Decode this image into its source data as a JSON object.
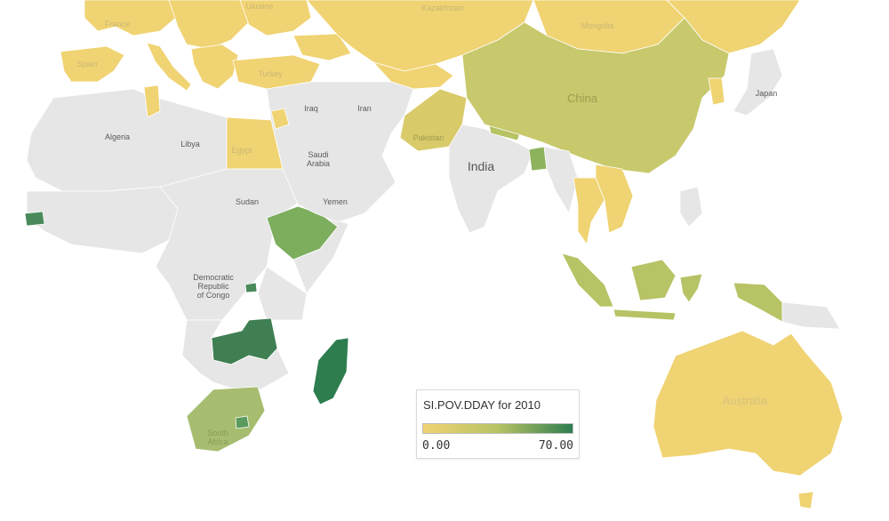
{
  "legend": {
    "title": "SI.POV.DDAY for 2010",
    "min_label": "0.00",
    "max_label": "70.00",
    "color_low": "#f0d372",
    "color_mid": "#b7c364",
    "color_high": "#2d7d4f"
  },
  "colors": {
    "no_data": "#e6e6e6",
    "border": "#ffffff",
    "ocean": "#ffffff"
  },
  "map_labels": {
    "france": "France",
    "ukraine": "Ukraine",
    "kazakhstan": "Kazakhstan",
    "mongolia": "Mongolia",
    "spain": "Spain",
    "turkey": "Turkey",
    "japan": "Japan",
    "china": "China",
    "iraq": "Iraq",
    "iran": "Iran",
    "algeria": "Algeria",
    "libya": "Libya",
    "egypt": "Egypt",
    "saudi_arabia_1": "Saudi",
    "saudi_arabia_2": "Arabia",
    "pakistan": "Pakistan",
    "india": "India",
    "sudan": "Sudan",
    "yemen": "Yemen",
    "drc_1": "Democratic",
    "drc_2": "Republic",
    "drc_3": "of Congo",
    "south_africa_1": "South",
    "south_africa_2": "Africa",
    "australia": "Australia"
  }
}
